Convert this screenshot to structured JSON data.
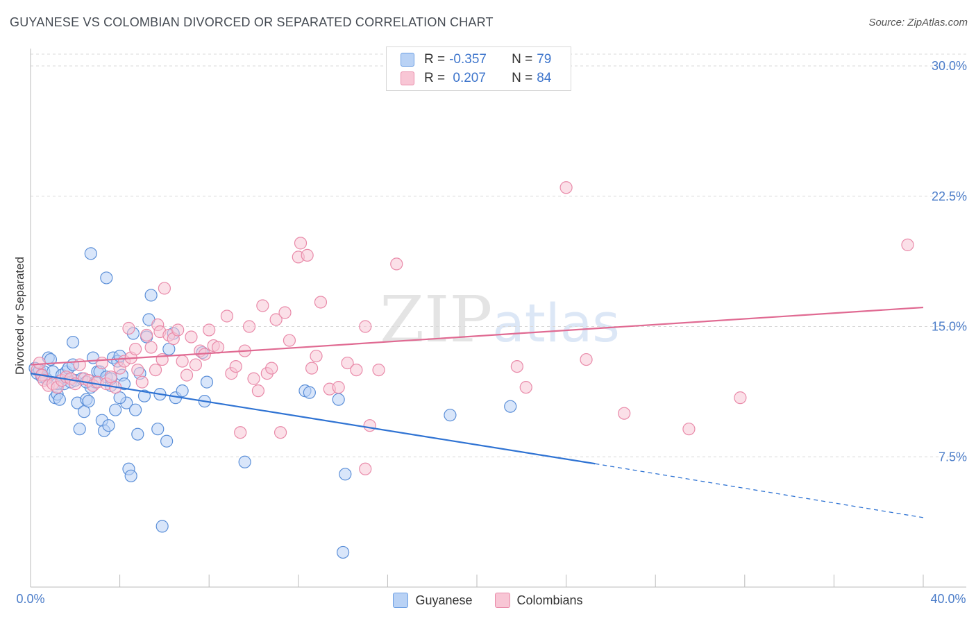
{
  "title": "GUYANESE VS COLOMBIAN DIVORCED OR SEPARATED CORRELATION CHART",
  "source": "Source: ZipAtlas.com",
  "watermark": "ZIPatlas",
  "legend": {
    "rows": [
      {
        "r_label": "R = ",
        "r_value": "-0.357",
        "n_label": "N = ",
        "n_value": "79"
      },
      {
        "r_label": "R = ",
        "r_value": " 0.207",
        "n_label": "N = ",
        "n_value": "84"
      }
    ]
  },
  "bottom_legend": {
    "series_a": "Guyanese",
    "series_b": "Colombians"
  },
  "colors": {
    "blue_fill": "#b9d2f5",
    "blue_stroke": "#5b8fd8",
    "blue_line": "#2f73d3",
    "pink_fill": "#f8c6d5",
    "pink_stroke": "#e98aa9",
    "pink_line": "#e06a92",
    "tick": "#4a7cc9",
    "grid": "#d9d9d9"
  },
  "chart_data": {
    "type": "scatter",
    "title": "GUYANESE VS COLOMBIAN DIVORCED OR SEPARATED CORRELATION CHART",
    "ylabel": "Divorced or Separated",
    "xlabel": "",
    "xlim": [
      0,
      40
    ],
    "ylim": [
      0,
      31
    ],
    "x_tick_labels": [
      "0.0%",
      "40.0%"
    ],
    "y_ticks": [
      7.5,
      15.0,
      22.5,
      30.0
    ],
    "y_tick_labels": [
      "7.5%",
      "15.0%",
      "22.5%",
      "30.0%"
    ],
    "grid": "horizontal dashed",
    "series": [
      {
        "name": "Guyanese",
        "R": -0.357,
        "N": 79,
        "trend": {
          "x0": 0,
          "y0": 12.3,
          "x1": 25.3,
          "y1": 7.1,
          "dash_x1": 40,
          "dash_y1": 4.0
        },
        "points": [
          [
            0.2,
            12.6
          ],
          [
            0.3,
            12.3
          ],
          [
            0.4,
            12.5
          ],
          [
            0.5,
            12.1
          ],
          [
            0.6,
            12.4
          ],
          [
            0.7,
            12.0
          ],
          [
            0.8,
            13.2
          ],
          [
            0.9,
            13.1
          ],
          [
            1.0,
            12.4
          ],
          [
            1.1,
            10.9
          ],
          [
            1.2,
            11.1
          ],
          [
            1.3,
            10.8
          ],
          [
            1.4,
            12.2
          ],
          [
            1.5,
            11.7
          ],
          [
            1.6,
            12.4
          ],
          [
            1.7,
            12.6
          ],
          [
            1.8,
            11.8
          ],
          [
            1.9,
            14.1
          ],
          [
            2.0,
            11.9
          ],
          [
            2.1,
            10.6
          ],
          [
            2.2,
            9.1
          ],
          [
            2.3,
            12.0
          ],
          [
            2.4,
            10.1
          ],
          [
            2.5,
            10.8
          ],
          [
            2.6,
            10.7
          ],
          [
            2.7,
            11.5
          ],
          [
            2.8,
            13.2
          ],
          [
            2.9,
            11.8
          ],
          [
            3.0,
            12.4
          ],
          [
            3.1,
            12.4
          ],
          [
            3.2,
            9.6
          ],
          [
            3.3,
            9.0
          ],
          [
            3.4,
            12.1
          ],
          [
            3.5,
            9.3
          ],
          [
            3.6,
            11.6
          ],
          [
            3.7,
            13.2
          ],
          [
            3.8,
            10.2
          ],
          [
            3.9,
            13.0
          ],
          [
            4.0,
            13.3
          ],
          [
            4.1,
            12.2
          ],
          [
            4.2,
            11.7
          ],
          [
            4.3,
            10.6
          ],
          [
            4.4,
            6.8
          ],
          [
            4.5,
            6.4
          ],
          [
            4.6,
            14.6
          ],
          [
            4.7,
            10.2
          ],
          [
            4.8,
            8.8
          ],
          [
            4.9,
            12.3
          ],
          [
            5.1,
            11.0
          ],
          [
            5.2,
            14.4
          ],
          [
            5.3,
            15.4
          ],
          [
            5.4,
            16.8
          ],
          [
            5.7,
            9.1
          ],
          [
            5.8,
            11.1
          ],
          [
            5.9,
            3.5
          ],
          [
            6.1,
            8.4
          ],
          [
            6.2,
            13.7
          ],
          [
            6.4,
            14.6
          ],
          [
            6.5,
            10.9
          ],
          [
            6.8,
            11.3
          ],
          [
            7.7,
            13.5
          ],
          [
            7.8,
            10.7
          ],
          [
            7.9,
            11.8
          ],
          [
            2.7,
            19.2
          ],
          [
            3.4,
            17.8
          ],
          [
            9.6,
            7.2
          ],
          [
            12.3,
            11.3
          ],
          [
            12.5,
            11.2
          ],
          [
            13.8,
            10.8
          ],
          [
            14.0,
            2.0
          ],
          [
            14.1,
            6.5
          ],
          [
            18.8,
            9.9
          ],
          [
            21.5,
            10.4
          ],
          [
            1.2,
            11.7
          ],
          [
            0.5,
            12.2
          ],
          [
            2.5,
            11.8
          ],
          [
            3.6,
            12.0
          ],
          [
            1.9,
            12.8
          ],
          [
            4.0,
            10.9
          ]
        ]
      },
      {
        "name": "Colombians",
        "R": 0.207,
        "N": 84,
        "trend": {
          "x0": 0,
          "y0": 12.8,
          "x1": 40,
          "y1": 16.1
        },
        "points": [
          [
            0.3,
            12.5
          ],
          [
            0.5,
            12.2
          ],
          [
            0.6,
            11.9
          ],
          [
            0.8,
            11.6
          ],
          [
            1.0,
            11.7
          ],
          [
            1.2,
            11.5
          ],
          [
            1.4,
            11.9
          ],
          [
            1.6,
            12.1
          ],
          [
            1.8,
            12.0
          ],
          [
            2.0,
            11.7
          ],
          [
            2.2,
            12.8
          ],
          [
            2.4,
            12.0
          ],
          [
            2.6,
            11.9
          ],
          [
            2.8,
            11.6
          ],
          [
            3.0,
            11.8
          ],
          [
            3.2,
            12.9
          ],
          [
            3.4,
            11.7
          ],
          [
            3.6,
            12.1
          ],
          [
            3.8,
            11.5
          ],
          [
            4.0,
            12.6
          ],
          [
            4.2,
            13.0
          ],
          [
            4.4,
            14.9
          ],
          [
            4.5,
            13.2
          ],
          [
            4.7,
            13.7
          ],
          [
            4.8,
            12.5
          ],
          [
            5.0,
            11.8
          ],
          [
            5.2,
            14.5
          ],
          [
            5.4,
            13.8
          ],
          [
            5.6,
            12.5
          ],
          [
            5.7,
            15.1
          ],
          [
            5.8,
            14.7
          ],
          [
            5.9,
            13.1
          ],
          [
            6.0,
            17.2
          ],
          [
            6.2,
            14.5
          ],
          [
            6.4,
            14.3
          ],
          [
            6.6,
            14.8
          ],
          [
            6.8,
            13.0
          ],
          [
            7.0,
            12.2
          ],
          [
            7.2,
            14.4
          ],
          [
            7.4,
            12.8
          ],
          [
            7.6,
            13.6
          ],
          [
            7.8,
            13.4
          ],
          [
            8.0,
            14.8
          ],
          [
            8.2,
            13.9
          ],
          [
            8.4,
            13.8
          ],
          [
            8.8,
            15.6
          ],
          [
            9.0,
            12.3
          ],
          [
            9.2,
            12.7
          ],
          [
            9.4,
            8.9
          ],
          [
            9.6,
            13.6
          ],
          [
            9.8,
            15.0
          ],
          [
            10.0,
            12.0
          ],
          [
            10.2,
            11.3
          ],
          [
            10.4,
            16.2
          ],
          [
            10.6,
            12.3
          ],
          [
            10.8,
            12.6
          ],
          [
            11.0,
            15.4
          ],
          [
            11.2,
            8.9
          ],
          [
            11.4,
            15.8
          ],
          [
            11.6,
            14.2
          ],
          [
            12.0,
            19.0
          ],
          [
            12.1,
            19.8
          ],
          [
            12.4,
            19.1
          ],
          [
            12.6,
            12.6
          ],
          [
            12.8,
            13.3
          ],
          [
            13.0,
            16.4
          ],
          [
            13.4,
            11.4
          ],
          [
            13.8,
            11.5
          ],
          [
            14.2,
            12.9
          ],
          [
            14.6,
            12.5
          ],
          [
            15.0,
            15.0
          ],
          [
            15.2,
            9.3
          ],
          [
            15.6,
            12.5
          ],
          [
            16.4,
            18.6
          ],
          [
            15.0,
            6.8
          ],
          [
            21.8,
            12.7
          ],
          [
            22.2,
            11.5
          ],
          [
            24.0,
            23.0
          ],
          [
            24.9,
            13.1
          ],
          [
            26.6,
            10.0
          ],
          [
            29.5,
            9.1
          ],
          [
            31.8,
            10.9
          ],
          [
            39.3,
            19.7
          ],
          [
            0.4,
            12.9
          ]
        ]
      }
    ]
  }
}
